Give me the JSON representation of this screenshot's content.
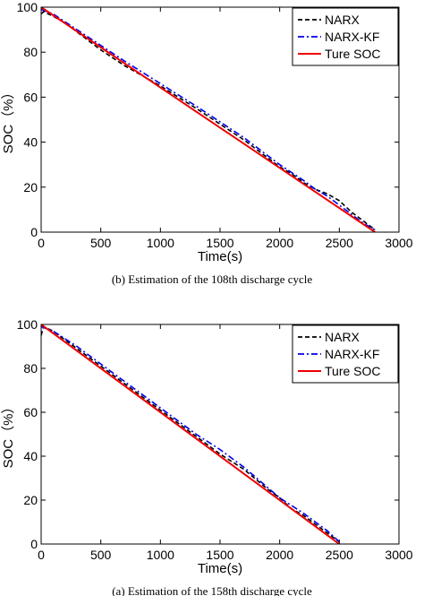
{
  "chart_data": [
    {
      "type": "line",
      "caption": "(b)    Estimation of the 108th discharge cycle",
      "xlabel": "Time(s)",
      "ylabel": "SOC（%）",
      "xlim": [
        0,
        3000
      ],
      "ylim": [
        0,
        100
      ],
      "xticks": [
        "0",
        "500",
        "1000",
        "1500",
        "2000",
        "2500",
        "3000"
      ],
      "yticks": [
        "0",
        "20",
        "40",
        "60",
        "80",
        "100"
      ],
      "grid": false,
      "legend_position": "top-right",
      "series": [
        {
          "name": "NARX",
          "color": "#000000",
          "style": "dashed",
          "x": [
            0,
            20,
            100,
            200,
            300,
            400,
            500,
            700,
            1000,
            1300,
            1500,
            1700,
            2000,
            2100,
            2200,
            2300,
            2400,
            2500,
            2600,
            2700,
            2800
          ],
          "y": [
            97,
            98,
            96,
            93,
            89,
            85,
            81,
            74,
            65,
            55,
            48,
            41,
            29,
            26,
            22,
            19,
            17,
            14,
            9,
            5,
            1
          ]
        },
        {
          "name": "NARX-KF",
          "color": "#0000ee",
          "style": "dashdot",
          "x": [
            0,
            100,
            300,
            500,
            700,
            1000,
            1300,
            1500,
            1700,
            2000,
            2200,
            2300,
            2400,
            2500,
            2600,
            2700,
            2800
          ],
          "y": [
            99,
            97,
            90,
            83,
            76,
            66,
            56,
            49,
            42,
            30,
            23,
            19,
            16,
            12,
            8,
            4,
            1
          ]
        },
        {
          "name": "Ture SOC",
          "color": "#ee0000",
          "style": "solid",
          "x": [
            0,
            2800
          ],
          "y": [
            100,
            0
          ]
        }
      ]
    },
    {
      "type": "line",
      "caption": "(a)    Estimation of the 158th discharge cycle",
      "xlabel": "Time(s)",
      "ylabel": "SOC（%）",
      "xlim": [
        0,
        3000
      ],
      "ylim": [
        0,
        100
      ],
      "xticks": [
        "0",
        "500",
        "1000",
        "1500",
        "2000",
        "2500",
        "3000"
      ],
      "yticks": [
        "0",
        "20",
        "40",
        "60",
        "80",
        "100"
      ],
      "grid": false,
      "legend_position": "top-right",
      "series": [
        {
          "name": "NARX",
          "color": "#000000",
          "style": "dashed",
          "x": [
            0,
            20,
            100,
            300,
            500,
            700,
            1000,
            1300,
            1500,
            1700,
            1900,
            2000,
            2100,
            2200,
            2300,
            2400,
            2500
          ],
          "y": [
            95,
            99,
            97,
            89,
            81,
            73,
            61,
            49,
            41,
            34,
            25,
            21,
            16,
            13,
            9,
            5,
            1
          ]
        },
        {
          "name": "NARX-KF",
          "color": "#0000ee",
          "style": "dashdot",
          "x": [
            0,
            100,
            300,
            500,
            700,
            1000,
            1300,
            1500,
            1700,
            2000,
            2200,
            2400,
            2500
          ],
          "y": [
            99,
            97,
            90,
            82,
            74,
            62,
            50,
            43,
            35,
            21,
            14,
            6,
            1
          ]
        },
        {
          "name": "Ture SOC",
          "color": "#ee0000",
          "style": "solid",
          "x": [
            0,
            2500
          ],
          "y": [
            100,
            0
          ]
        }
      ]
    }
  ]
}
